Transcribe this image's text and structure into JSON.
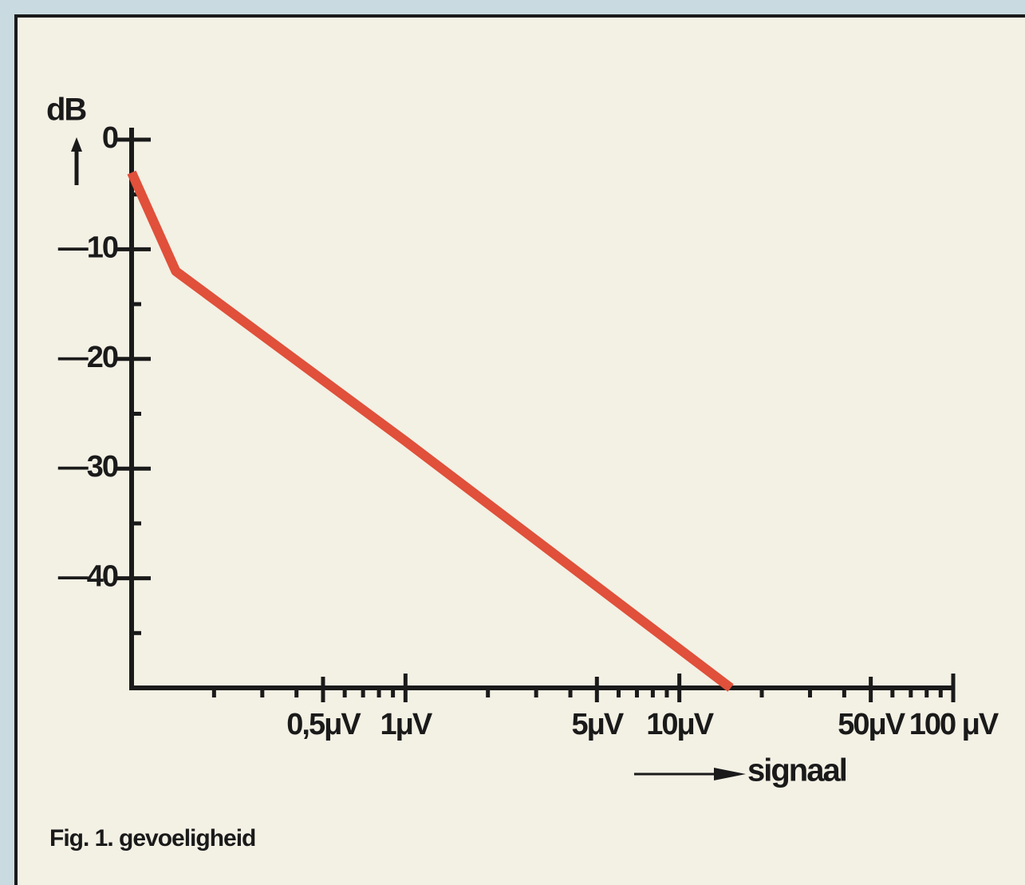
{
  "chart_data": {
    "type": "line",
    "y_label": "dB",
    "x_label": "signaal",
    "caption": "Fig. 1. gevoeligheid",
    "log_x": true,
    "xlim": [
      0.1,
      100
    ],
    "ylim": [
      -50,
      0
    ],
    "xticks": [
      {
        "value": 0.5,
        "label": "0,5μV"
      },
      {
        "value": 1,
        "label": "1μV"
      },
      {
        "value": 5,
        "label": "5μV"
      },
      {
        "value": 10,
        "label": "10μV"
      },
      {
        "value": 50,
        "label": "50μV"
      },
      {
        "value": 100,
        "label": "100 μV"
      }
    ],
    "xminorticks": [
      0.2,
      0.3,
      0.4,
      0.6,
      0.7,
      0.8,
      0.9,
      2,
      3,
      4,
      6,
      7,
      8,
      9,
      20,
      30,
      40,
      60,
      70,
      80,
      90
    ],
    "yticks": [
      0,
      {
        "value": -10,
        "label": "—10"
      },
      {
        "value": -20,
        "label": "—20"
      },
      {
        "value": -30,
        "label": "—30"
      },
      {
        "value": -40,
        "label": "—40"
      }
    ],
    "yminorticks": [
      -5,
      -15,
      -25,
      -35,
      -45
    ],
    "series": [
      {
        "color": "#e0503a",
        "x": [
          0.1,
          0.145,
          1,
          15.4
        ],
        "values": [
          -3,
          -12,
          -27.5,
          -50
        ]
      }
    ]
  }
}
